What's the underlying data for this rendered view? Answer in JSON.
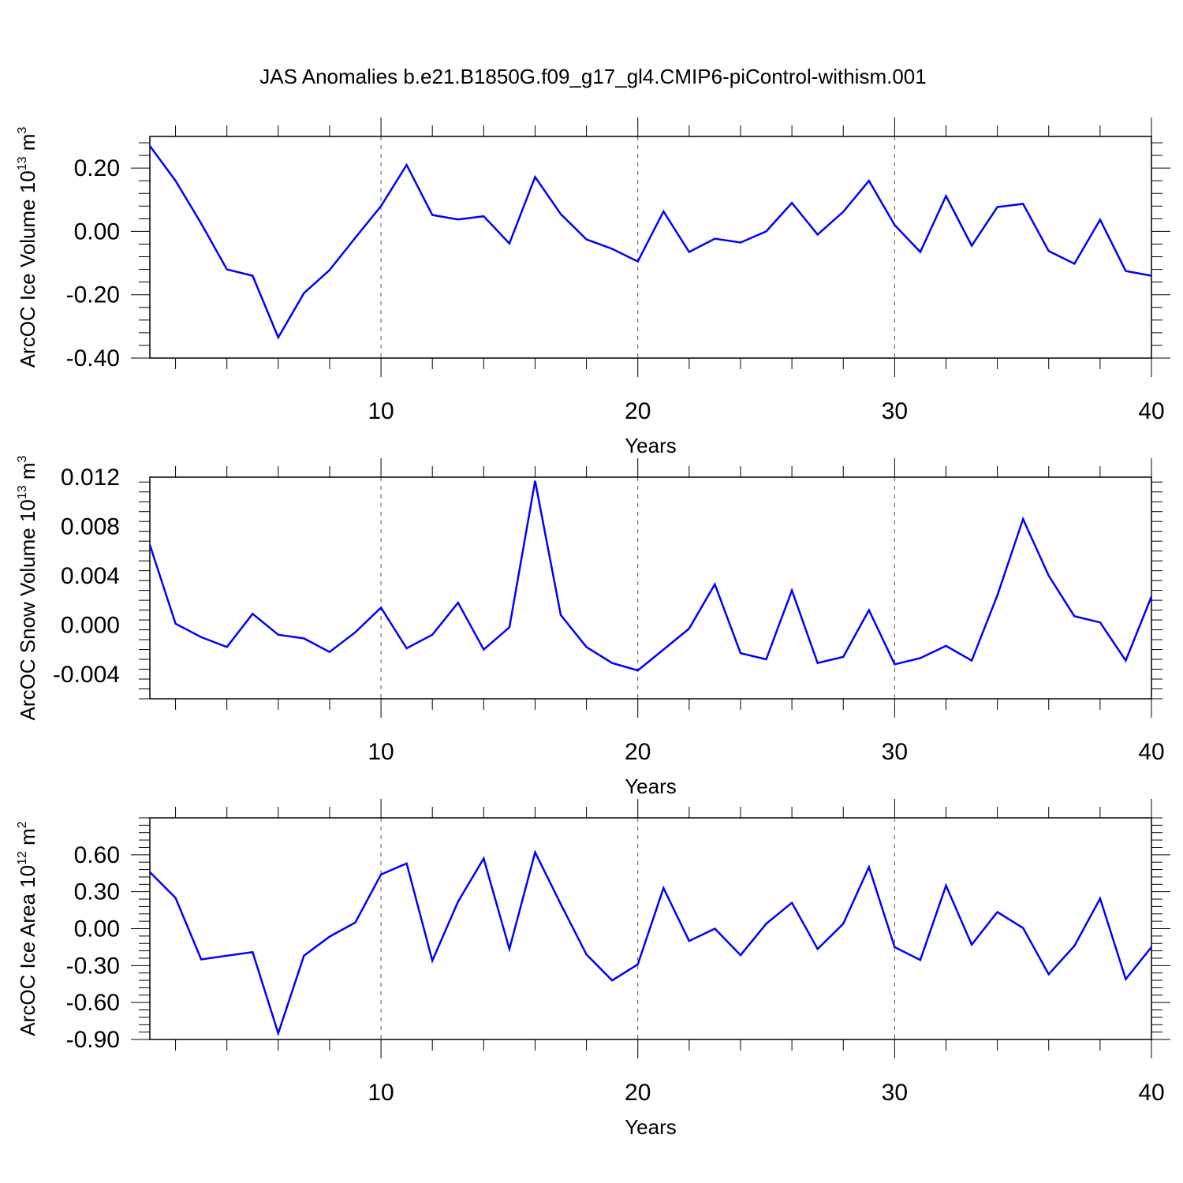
{
  "figure_title": "JAS Anomalies b.e21.B1850G.f09_g17_gl4.CMIP6-piControl-withism.001",
  "line_color": "#0000ff",
  "chart_data": [
    {
      "type": "line",
      "title": "JAS Anomalies b.e21.B1850G.f09_g17_gl4.CMIP6-piControl-withism.001",
      "xlabel": "Years",
      "ylabel_base": "ArcOC Ice Volume 10",
      "ylabel_exp": "13",
      "ylabel_unit": " m",
      "ylabel_unit_exp": "3",
      "xlim": [
        1,
        40
      ],
      "ylim": [
        -0.4,
        0.3
      ],
      "xticks": [
        10,
        20,
        30,
        40
      ],
      "xtick_labels": [
        "10",
        "20",
        "30",
        "40"
      ],
      "yticks": [
        -0.4,
        -0.2,
        0.0,
        0.2
      ],
      "ytick_labels": [
        "-0.40",
        "-0.20",
        "0.00",
        "0.20"
      ],
      "x": [
        1,
        2,
        3,
        4,
        5,
        6,
        7,
        8,
        9,
        10,
        11,
        12,
        13,
        14,
        15,
        16,
        17,
        18,
        19,
        20,
        21,
        22,
        23,
        24,
        25,
        26,
        27,
        28,
        29,
        30,
        31,
        32,
        33,
        34,
        35,
        36,
        37,
        38,
        39,
        40
      ],
      "series": [
        {
          "name": "ArcOC Ice Volume",
          "values": [
            0.27,
            0.16,
            0.025,
            -0.12,
            -0.14,
            -0.335,
            -0.195,
            -0.122,
            -0.02,
            0.08,
            0.21,
            0.052,
            0.038,
            0.048,
            -0.038,
            0.172,
            0.055,
            -0.025,
            -0.055,
            -0.095,
            0.063,
            -0.065,
            -0.023,
            -0.035,
            0.0,
            0.09,
            -0.01,
            0.062,
            0.16,
            0.02,
            -0.065,
            0.112,
            -0.045,
            0.077,
            0.087,
            -0.062,
            -0.102,
            0.037,
            -0.125,
            -0.14
          ]
        }
      ]
    },
    {
      "type": "line",
      "xlabel": "Years",
      "ylabel_base": "ArcOC Snow Volume 10",
      "ylabel_exp": "13",
      "ylabel_unit": " m",
      "ylabel_unit_exp": "3",
      "xlim": [
        1,
        40
      ],
      "ylim": [
        -0.006,
        0.012
      ],
      "xticks": [
        10,
        20,
        30,
        40
      ],
      "xtick_labels": [
        "10",
        "20",
        "30",
        "40"
      ],
      "yticks": [
        -0.004,
        0.0,
        0.004,
        0.008,
        0.012
      ],
      "ytick_labels": [
        "-0.004",
        "0.000",
        "0.004",
        "0.008",
        "0.012"
      ],
      "x": [
        1,
        2,
        3,
        4,
        5,
        6,
        7,
        8,
        9,
        10,
        11,
        12,
        13,
        14,
        15,
        16,
        17,
        18,
        19,
        20,
        21,
        22,
        23,
        24,
        25,
        26,
        27,
        28,
        29,
        30,
        31,
        32,
        33,
        34,
        35,
        36,
        37,
        38,
        39,
        40
      ],
      "series": [
        {
          "name": "ArcOC Snow Volume",
          "values": [
            0.0065,
            0.0001,
            -0.001,
            -0.0018,
            0.0009,
            -0.0008,
            -0.0011,
            -0.0022,
            -0.0006,
            0.0014,
            -0.0019,
            -0.0008,
            0.0018,
            -0.002,
            -0.0002,
            0.0117,
            0.0008,
            -0.0018,
            -0.0031,
            -0.0037,
            -0.002,
            -0.0003,
            0.0033,
            -0.0023,
            -0.0028,
            0.0028,
            -0.0031,
            -0.0026,
            0.0012,
            -0.0032,
            -0.0027,
            -0.0017,
            -0.0029,
            0.0024,
            0.0086,
            0.004,
            0.0007,
            0.0002,
            -0.0029,
            0.0023
          ]
        }
      ]
    },
    {
      "type": "line",
      "xlabel": "Years",
      "ylabel_base": "ArcOC Ice Area 10",
      "ylabel_exp": "12",
      "ylabel_unit": " m",
      "ylabel_unit_exp": "2",
      "xlim": [
        1,
        40
      ],
      "ylim": [
        -0.9,
        0.9
      ],
      "xticks": [
        10,
        20,
        30,
        40
      ],
      "xtick_labels": [
        "10",
        "20",
        "30",
        "40"
      ],
      "yticks": [
        -0.9,
        -0.6,
        -0.3,
        0.0,
        0.3,
        0.6
      ],
      "ytick_labels": [
        "-0.90",
        "-0.60",
        "-0.30",
        "0.00",
        "0.30",
        "0.60"
      ],
      "x": [
        1,
        2,
        3,
        4,
        5,
        6,
        7,
        8,
        9,
        10,
        11,
        12,
        13,
        14,
        15,
        16,
        17,
        18,
        19,
        20,
        21,
        22,
        23,
        24,
        25,
        26,
        27,
        28,
        29,
        30,
        31,
        32,
        33,
        34,
        35,
        36,
        37,
        38,
        39,
        40
      ],
      "series": [
        {
          "name": "ArcOC Ice Area",
          "values": [
            0.46,
            0.25,
            -0.25,
            -0.22,
            -0.19,
            -0.85,
            -0.22,
            -0.065,
            0.05,
            0.44,
            0.53,
            -0.26,
            0.22,
            0.57,
            -0.165,
            0.62,
            0.2,
            -0.21,
            -0.42,
            -0.29,
            0.33,
            -0.1,
            0.0,
            -0.215,
            0.04,
            0.21,
            -0.165,
            0.04,
            0.5,
            -0.15,
            -0.255,
            0.35,
            -0.13,
            0.135,
            0.005,
            -0.37,
            -0.14,
            0.245,
            -0.41,
            -0.15
          ]
        }
      ]
    }
  ]
}
